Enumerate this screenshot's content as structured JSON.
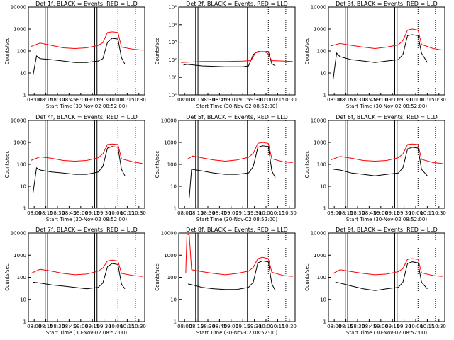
{
  "chart_data": [
    {
      "type": "line",
      "title": "Det 1f, BLACK = Events, RED = LLD",
      "xlabel": "Start Time (30-Nov-02 08:52:00)",
      "ylabel": "Counts/sec",
      "scale": "log",
      "ylim": [
        1,
        10000
      ],
      "yticks": [
        "1",
        "10",
        "100",
        "1000",
        "10000"
      ],
      "xticks": [
        "08:00",
        "08:15",
        "08:30",
        "08:45",
        "09:00",
        "09:15",
        "09:30",
        "10:00",
        "10:15",
        "10:30"
      ],
      "series": [
        {
          "color": "#000000",
          "x": [
            0.04,
            0.07,
            0.1,
            0.2,
            0.3,
            0.4,
            0.5,
            0.6,
            0.64,
            0.68,
            0.72,
            0.77,
            0.8,
            0.83
          ],
          "values": [
            8,
            60,
            45,
            40,
            35,
            30,
            30,
            35,
            45,
            250,
            380,
            350,
            50,
            25
          ]
        },
        {
          "color": "#ff0000",
          "x": [
            0.02,
            0.1,
            0.2,
            0.3,
            0.4,
            0.5,
            0.6,
            0.64,
            0.68,
            0.72,
            0.77,
            0.8,
            0.9,
            0.98
          ],
          "values": [
            160,
            230,
            180,
            140,
            130,
            140,
            180,
            240,
            700,
            750,
            700,
            150,
            120,
            110
          ]
        }
      ]
    },
    {
      "type": "line",
      "title": "Det 2f, BLACK = Events, RED = LLD",
      "xlabel": "Start Time (30-Nov-02 08:52:00)",
      "ylabel": "Counts/sec",
      "scale": "log",
      "ylim": [
        1,
        100000
      ],
      "yticks": [
        "10⁰",
        "10¹",
        "10²",
        "10³",
        "10⁴",
        "10⁵"
      ],
      "xticks": [
        "08:00",
        "08:15",
        "08:30",
        "08:45",
        "09:00",
        "09:15",
        "09:30",
        "10:00",
        "10:15",
        "10:30"
      ],
      "series": [
        {
          "color": "#000000",
          "x": [
            0.04,
            0.07,
            0.2,
            0.4,
            0.55,
            0.6,
            0.64,
            0.68,
            0.72,
            0.77,
            0.8,
            0.83
          ],
          "values": [
            50,
            55,
            45,
            40,
            40,
            45,
            200,
            300,
            280,
            300,
            60,
            45
          ]
        },
        {
          "color": "#ff0000",
          "x": [
            0.02,
            0.2,
            0.4,
            0.55,
            0.62,
            0.66,
            0.72,
            0.76,
            0.8,
            0.98
          ],
          "values": [
            70,
            80,
            80,
            85,
            90,
            250,
            300,
            250,
            90,
            80
          ]
        }
      ]
    },
    {
      "type": "line",
      "title": "Det 3f, BLACK = Events, RED = LLD",
      "xlabel": "Start Time (30-Nov-02 08:52:00)",
      "ylabel": "Counts/sec",
      "scale": "log",
      "ylim": [
        1,
        10000
      ],
      "yticks": [
        "1",
        "10",
        "100",
        "1000",
        "10000"
      ],
      "xticks": [
        "08:00",
        "08:15",
        "08:30",
        "08:45",
        "09:00",
        "09:15",
        "09:30",
        "10:00",
        "10:15",
        "10:30"
      ],
      "series": [
        {
          "color": "#000000",
          "x": [
            0.04,
            0.07,
            0.1,
            0.2,
            0.3,
            0.4,
            0.5,
            0.6,
            0.64,
            0.68,
            0.72,
            0.77,
            0.8,
            0.85
          ],
          "values": [
            5,
            80,
            55,
            40,
            35,
            30,
            35,
            40,
            70,
            500,
            550,
            500,
            80,
            30
          ]
        },
        {
          "color": "#ff0000",
          "x": [
            0.02,
            0.1,
            0.2,
            0.3,
            0.4,
            0.5,
            0.6,
            0.64,
            0.68,
            0.72,
            0.77,
            0.8,
            0.9,
            0.98
          ],
          "values": [
            170,
            220,
            180,
            150,
            130,
            150,
            190,
            300,
            900,
            1000,
            900,
            200,
            130,
            110
          ]
        }
      ]
    },
    {
      "type": "line",
      "title": "Det 4f, BLACK = Events, RED = LLD",
      "xlabel": "Start Time (30-Nov-02 08:52:00)",
      "ylabel": "Counts/sec",
      "scale": "log",
      "ylim": [
        1,
        10000
      ],
      "yticks": [
        "1",
        "10",
        "100",
        "1000",
        "10000"
      ],
      "xticks": [
        "08:00",
        "08:15",
        "08:30",
        "08:45",
        "09:00",
        "09:15",
        "09:30",
        "10:00",
        "10:15",
        "10:30"
      ],
      "series": [
        {
          "color": "#000000",
          "x": [
            0.04,
            0.07,
            0.1,
            0.2,
            0.3,
            0.4,
            0.5,
            0.6,
            0.64,
            0.68,
            0.72,
            0.77,
            0.8,
            0.83
          ],
          "values": [
            5,
            70,
            55,
            45,
            40,
            35,
            35,
            45,
            80,
            550,
            650,
            600,
            60,
            30
          ]
        },
        {
          "color": "#ff0000",
          "x": [
            0.02,
            0.1,
            0.2,
            0.3,
            0.4,
            0.5,
            0.6,
            0.64,
            0.68,
            0.72,
            0.77,
            0.8,
            0.9,
            0.98
          ],
          "values": [
            150,
            220,
            190,
            150,
            140,
            150,
            200,
            300,
            800,
            850,
            800,
            180,
            130,
            110
          ]
        }
      ]
    },
    {
      "type": "line",
      "title": "Det 5f, BLACK = Events, RED = LLD",
      "xlabel": "Start Time (30-Nov-02 08:52:00)",
      "ylabel": "Counts/sec",
      "scale": "log",
      "ylim": [
        1,
        10000
      ],
      "yticks": [
        "1",
        "10",
        "100",
        "1000",
        "10000"
      ],
      "xticks": [
        "08:00",
        "08:15",
        "08:30",
        "08:45",
        "09:00",
        "09:15",
        "09:30",
        "10:00",
        "10:15",
        "10:30"
      ],
      "series": [
        {
          "color": "#000000",
          "x": [
            0.09,
            0.11,
            0.2,
            0.3,
            0.4,
            0.5,
            0.6,
            0.64,
            0.68,
            0.72,
            0.77,
            0.8,
            0.83
          ],
          "values": [
            3,
            60,
            50,
            40,
            35,
            35,
            40,
            80,
            600,
            700,
            650,
            50,
            25
          ]
        },
        {
          "color": "#ff0000",
          "x": [
            0.07,
            0.12,
            0.2,
            0.3,
            0.4,
            0.5,
            0.6,
            0.64,
            0.68,
            0.72,
            0.77,
            0.8,
            0.9,
            0.98
          ],
          "values": [
            170,
            240,
            200,
            160,
            140,
            160,
            210,
            320,
            900,
            1000,
            900,
            180,
            130,
            120
          ]
        }
      ]
    },
    {
      "type": "line",
      "title": "Det 6f, BLACK = Events, RED = LLD",
      "xlabel": "Start Time (30-Nov-02 08:52:00)",
      "ylabel": "Counts/sec",
      "scale": "log",
      "ylim": [
        1,
        10000
      ],
      "yticks": [
        "1",
        "10",
        "100",
        "1000",
        "10000"
      ],
      "xticks": [
        "08:00",
        "08:15",
        "08:30",
        "08:45",
        "09:00",
        "09:15",
        "09:30",
        "10:00",
        "10:15",
        "10:30"
      ],
      "series": [
        {
          "color": "#000000",
          "x": [
            0.04,
            0.1,
            0.2,
            0.3,
            0.4,
            0.5,
            0.6,
            0.64,
            0.68,
            0.72,
            0.77,
            0.8,
            0.85
          ],
          "values": [
            60,
            55,
            40,
            35,
            30,
            35,
            40,
            70,
            500,
            600,
            550,
            60,
            30
          ]
        },
        {
          "color": "#ff0000",
          "x": [
            0.02,
            0.1,
            0.2,
            0.3,
            0.4,
            0.5,
            0.6,
            0.64,
            0.68,
            0.72,
            0.77,
            0.8,
            0.9,
            0.98
          ],
          "values": [
            160,
            230,
            190,
            150,
            140,
            150,
            200,
            300,
            800,
            850,
            800,
            170,
            120,
            110
          ]
        }
      ]
    },
    {
      "type": "line",
      "title": "Det 7f, BLACK = Events, RED = LLD",
      "xlabel": "Start Time (30-Nov-02 08:52:00)",
      "ylabel": "Counts/sec",
      "scale": "log",
      "ylim": [
        1,
        10000
      ],
      "yticks": [
        "1",
        "10",
        "100",
        "1000",
        "10000"
      ],
      "xticks": [
        "08:00",
        "08:15",
        "08:30",
        "08:45",
        "09:00",
        "09:15",
        "09:30",
        "10:00",
        "10:15",
        "10:30"
      ],
      "series": [
        {
          "color": "#000000",
          "x": [
            0.04,
            0.1,
            0.2,
            0.3,
            0.4,
            0.5,
            0.6,
            0.64,
            0.68,
            0.72,
            0.77,
            0.8,
            0.83
          ],
          "values": [
            60,
            55,
            45,
            40,
            35,
            30,
            35,
            55,
            300,
            420,
            380,
            50,
            30
          ]
        },
        {
          "color": "#ff0000",
          "x": [
            0.02,
            0.1,
            0.2,
            0.3,
            0.4,
            0.5,
            0.6,
            0.64,
            0.68,
            0.72,
            0.77,
            0.8,
            0.9,
            0.98
          ],
          "values": [
            150,
            230,
            190,
            150,
            130,
            140,
            190,
            260,
            550,
            600,
            550,
            150,
            120,
            110
          ]
        }
      ]
    },
    {
      "type": "line",
      "title": "Det 8f, BLACK = Events, RED = LLD",
      "xlabel": "Start Time (30-Nov-02 08:52:00)",
      "ylabel": "Counts/sec",
      "scale": "log",
      "ylim": [
        1,
        10000
      ],
      "yticks": [
        "1",
        "10",
        "100",
        "1000",
        "10000"
      ],
      "xticks": [
        "08:00",
        "08:15",
        "08:30",
        "08:45",
        "09:00",
        "09:15",
        "09:30",
        "10:00",
        "10:15",
        "10:30"
      ],
      "series": [
        {
          "color": "#000000",
          "x": [
            0.08,
            0.12,
            0.2,
            0.3,
            0.4,
            0.5,
            0.6,
            0.64,
            0.68,
            0.72,
            0.77,
            0.8,
            0.83
          ],
          "values": [
            50,
            45,
            35,
            30,
            28,
            28,
            35,
            60,
            450,
            550,
            500,
            50,
            25
          ]
        },
        {
          "color": "#ff0000",
          "x": [
            0.06,
            0.07,
            0.09,
            0.11,
            0.2,
            0.3,
            0.4,
            0.5,
            0.6,
            0.64,
            0.68,
            0.72,
            0.77,
            0.8,
            0.9,
            0.98
          ],
          "values": [
            150,
            9000,
            8000,
            220,
            180,
            150,
            130,
            150,
            190,
            280,
            700,
            800,
            700,
            170,
            120,
            110
          ]
        }
      ]
    },
    {
      "type": "line",
      "title": "Det 9f, BLACK = Events, RED = LLD",
      "xlabel": "Start Time (30-Nov-02 08:52:00)",
      "ylabel": "Counts/sec",
      "scale": "log",
      "ylim": [
        1,
        10000
      ],
      "yticks": [
        "1",
        "10",
        "100",
        "1000",
        "10000"
      ],
      "xticks": [
        "08:00",
        "08:15",
        "08:30",
        "08:45",
        "09:00",
        "09:15",
        "09:30",
        "10:00",
        "10:15",
        "10:30"
      ],
      "series": [
        {
          "color": "#000000",
          "x": [
            0.06,
            0.1,
            0.2,
            0.3,
            0.4,
            0.5,
            0.6,
            0.64,
            0.68,
            0.72,
            0.77,
            0.8,
            0.85
          ],
          "values": [
            60,
            55,
            40,
            30,
            25,
            30,
            35,
            60,
            420,
            500,
            450,
            60,
            30
          ]
        },
        {
          "color": "#ff0000",
          "x": [
            0.04,
            0.1,
            0.2,
            0.3,
            0.4,
            0.5,
            0.6,
            0.64,
            0.68,
            0.72,
            0.77,
            0.8,
            0.9,
            0.98
          ],
          "values": [
            150,
            220,
            180,
            150,
            130,
            140,
            180,
            250,
            650,
            700,
            650,
            160,
            120,
            110
          ]
        }
      ]
    }
  ]
}
